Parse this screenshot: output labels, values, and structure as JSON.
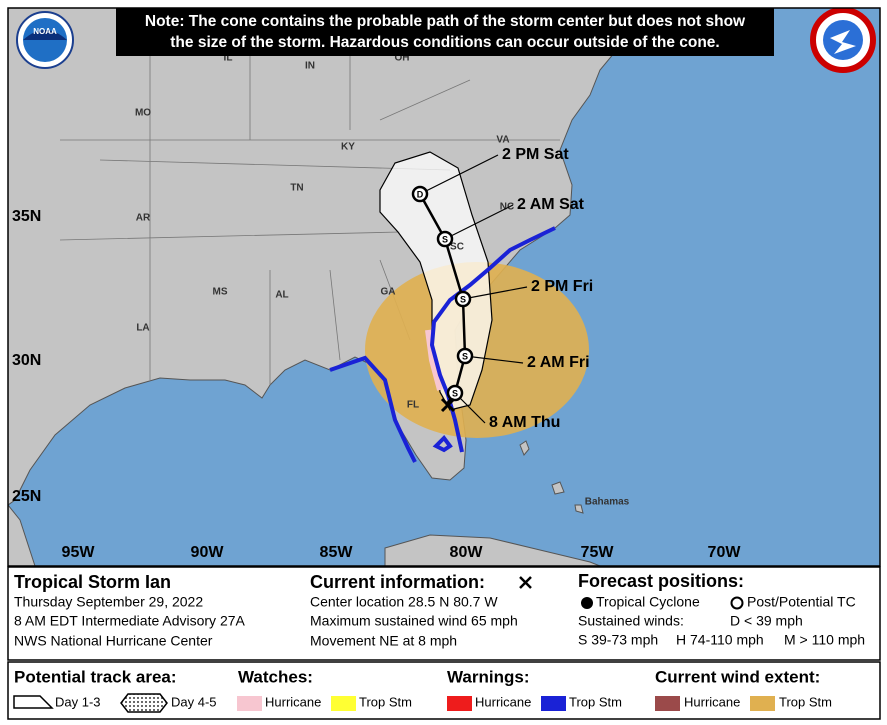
{
  "note": [
    "Note: The cone contains the probable path of the storm center but does not show",
    "the size of the storm. Hazardous conditions can occur outside of the cone."
  ],
  "logo": "NOAA",
  "map": {
    "states": [
      "IL",
      "IN",
      "OH",
      "MO",
      "KY",
      "VA",
      "TN",
      "NC",
      "AR",
      "SC",
      "MS",
      "AL",
      "GA",
      "LA",
      "FL"
    ],
    "other_labels": [
      "Bahamas"
    ],
    "lat_labels": [
      "35N",
      "30N",
      "25N"
    ],
    "lon_labels": [
      "95W",
      "90W",
      "85W",
      "80W",
      "75W",
      "70W"
    ]
  },
  "forecast_points": [
    {
      "time": "2 PM Sat",
      "symbol": "D"
    },
    {
      "time": "2 AM Sat",
      "symbol": "S"
    },
    {
      "time": "2 PM Fri",
      "symbol": "S"
    },
    {
      "time": "2 AM Fri",
      "symbol": "S"
    },
    {
      "time": "8 AM Thu",
      "symbol": "S"
    }
  ],
  "storm": {
    "name": "Tropical Storm Ian",
    "date": "Thursday September 29, 2022",
    "advisory": "8 AM EDT Intermediate Advisory 27A",
    "center": "NWS National Hurricane Center"
  },
  "current": {
    "title": "Current information:",
    "lines": [
      "Center location 28.5 N 80.7 W",
      "Maximum sustained wind 65 mph",
      "Movement NE at 8 mph"
    ]
  },
  "forecast_positions": {
    "title": "Forecast positions:",
    "tropical_cyclone": "Tropical Cyclone",
    "post_tc": "Post/Potential TC",
    "sustained_winds": "Sustained winds:",
    "d": "D < 39 mph",
    "s": "S 39-73 mph",
    "h": "H 74-110 mph",
    "m": "M > 110 mph"
  },
  "legend": {
    "track_title": "Potential track area:",
    "day13": "Day 1-3",
    "day45": "Day 4-5",
    "watches_title": "Watches:",
    "watch_hurricane": "Hurricane",
    "watch_trop": "Trop Stm",
    "warnings_title": "Warnings:",
    "warning_hurricane": "Hurricane",
    "warning_trop": "Trop Stm",
    "wind_title": "Current wind extent:",
    "wind_hurricane": "Hurricane",
    "wind_trop": "Trop Stm"
  }
}
